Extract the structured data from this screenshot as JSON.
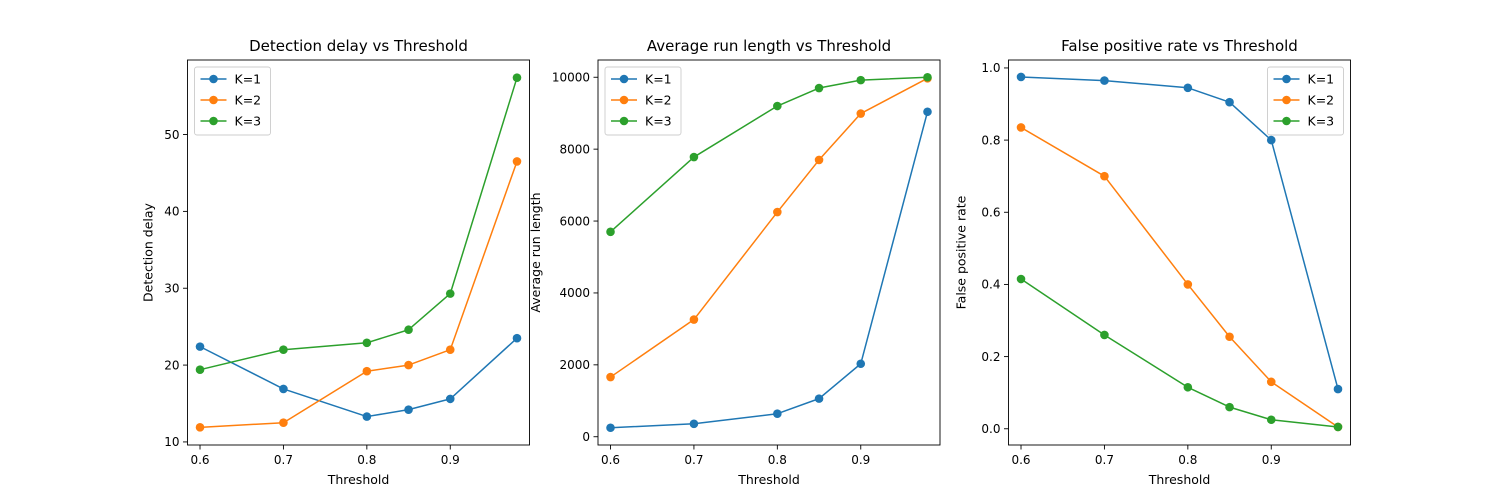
{
  "chart_data": [
    {
      "type": "line",
      "title": "Detection delay vs Threshold",
      "xlabel": "Threshold",
      "ylabel": "Detection delay",
      "x": [
        0.6,
        0.7,
        0.8,
        0.85,
        0.9,
        0.98
      ],
      "xlim": [
        0.585,
        0.995
      ],
      "ylim": [
        9.6,
        59.7
      ],
      "xticks": [
        0.6,
        0.7,
        0.8,
        0.9
      ],
      "xtick_labels": [
        "0.6",
        "0.7",
        "0.8",
        "0.9"
      ],
      "yticks": [
        10,
        20,
        30,
        40,
        50
      ],
      "ytick_labels": [
        "10",
        "20",
        "30",
        "40",
        "50"
      ],
      "legend": "upper-left",
      "grid": false,
      "series": [
        {
          "name": "K=1",
          "color": "#1f77b4",
          "values": [
            22.4,
            16.9,
            13.3,
            14.2,
            15.6,
            23.5
          ]
        },
        {
          "name": "K=2",
          "color": "#ff7f0e",
          "values": [
            11.9,
            12.5,
            19.2,
            20.0,
            22.0,
            46.5
          ]
        },
        {
          "name": "K=3",
          "color": "#2ca02c",
          "values": [
            19.4,
            22.0,
            22.9,
            24.6,
            29.3,
            57.4
          ]
        }
      ]
    },
    {
      "type": "line",
      "title": "Average run length vs Threshold",
      "xlabel": "Threshold",
      "ylabel": "Average run length",
      "x": [
        0.6,
        0.7,
        0.8,
        0.85,
        0.9,
        0.98
      ],
      "xlim": [
        0.585,
        0.995
      ],
      "ylim": [
        -230,
        10480
      ],
      "xticks": [
        0.6,
        0.7,
        0.8,
        0.9
      ],
      "xtick_labels": [
        "0.6",
        "0.7",
        "0.8",
        "0.9"
      ],
      "yticks": [
        0,
        2000,
        4000,
        6000,
        8000,
        10000
      ],
      "ytick_labels": [
        "0",
        "2000",
        "4000",
        "6000",
        "8000",
        "10000"
      ],
      "legend": "upper-left",
      "grid": false,
      "series": [
        {
          "name": "K=1",
          "color": "#1f77b4",
          "values": [
            250,
            360,
            640,
            1060,
            2030,
            9040
          ]
        },
        {
          "name": "K=2",
          "color": "#ff7f0e",
          "values": [
            1660,
            3260,
            6250,
            7700,
            8990,
            9970
          ]
        },
        {
          "name": "K=3",
          "color": "#2ca02c",
          "values": [
            5700,
            7780,
            9200,
            9700,
            9920,
            10000
          ]
        }
      ]
    },
    {
      "type": "line",
      "title": "False positive rate vs Threshold",
      "xlabel": "Threshold",
      "ylabel": "False positive rate",
      "x": [
        0.6,
        0.7,
        0.8,
        0.85,
        0.9,
        0.98
      ],
      "xlim": [
        0.585,
        0.995
      ],
      "ylim": [
        -0.045,
        1.022
      ],
      "xticks": [
        0.6,
        0.7,
        0.8,
        0.9
      ],
      "xtick_labels": [
        "0.6",
        "0.7",
        "0.8",
        "0.9"
      ],
      "yticks": [
        0,
        0.2,
        0.4,
        0.6,
        0.8,
        1.0
      ],
      "ytick_labels": [
        "0.0",
        "0.2",
        "0.4",
        "0.6",
        "0.8",
        "1.0"
      ],
      "legend": "upper-right",
      "grid": false,
      "series": [
        {
          "name": "K=1",
          "color": "#1f77b4",
          "values": [
            0.975,
            0.965,
            0.945,
            0.905,
            0.8,
            0.11
          ]
        },
        {
          "name": "K=2",
          "color": "#ff7f0e",
          "values": [
            0.835,
            0.7,
            0.4,
            0.255,
            0.13,
            0.005
          ]
        },
        {
          "name": "K=3",
          "color": "#2ca02c",
          "values": [
            0.415,
            0.26,
            0.115,
            0.06,
            0.025,
            0.005
          ]
        }
      ]
    }
  ]
}
